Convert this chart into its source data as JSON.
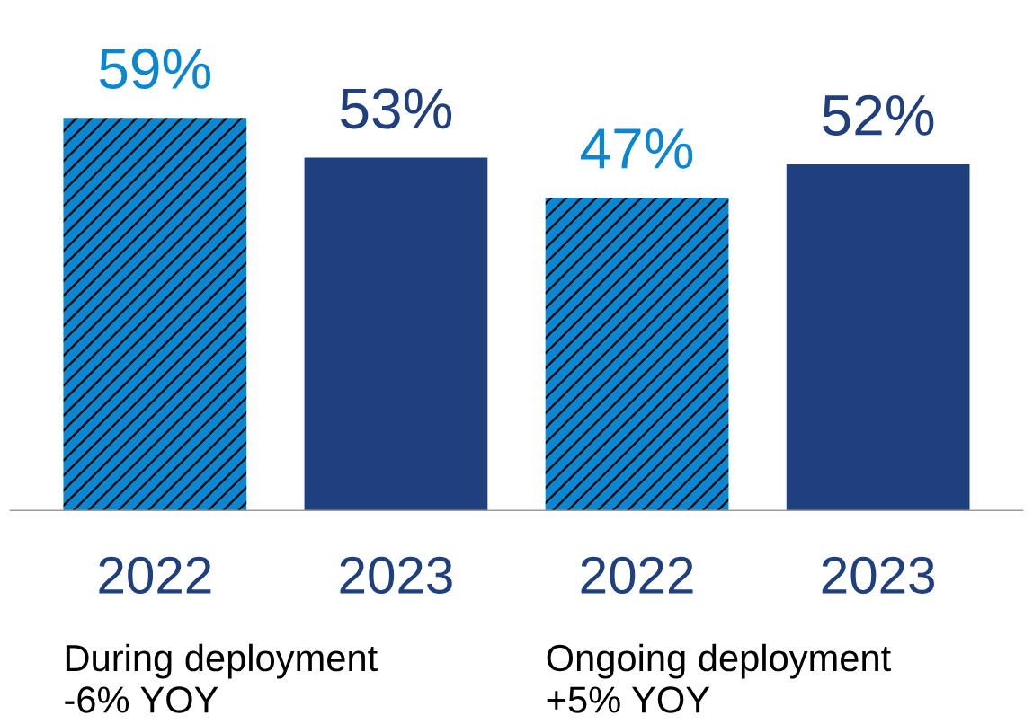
{
  "chart_data": {
    "type": "bar",
    "categories": [
      "2022",
      "2023",
      "2022",
      "2023"
    ],
    "series": [
      {
        "color": "#0a87d0",
        "values": [
          59,
          null,
          47,
          null
        ],
        "value_labels": [
          "59%",
          null,
          "47%",
          null
        ]
      },
      {
        "color": "#1f3f7f",
        "values": [
          null,
          53,
          null,
          52
        ],
        "value_labels": [
          null,
          "53%",
          null,
          "52%"
        ]
      }
    ],
    "annotations": [
      "During deployment\n-6% YOY",
      "Ongoing deployment\n+5% YOY"
    ]
  }
}
